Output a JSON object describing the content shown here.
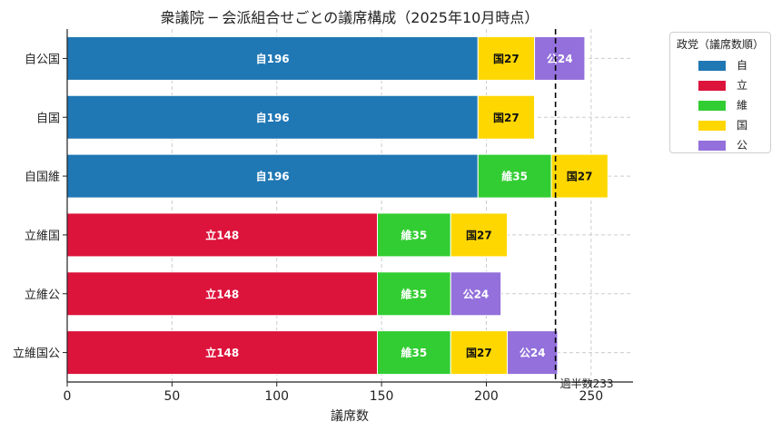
{
  "chart_data": {
    "type": "bar",
    "orientation": "horizontal",
    "stacked": true,
    "title": "衆議院 ─ 会派組合せごとの議席構成（2025年10月時点）",
    "xlabel": "議席数",
    "ylabel": "",
    "xlim": [
      0,
      270
    ],
    "xticks": [
      0,
      50,
      100,
      150,
      200,
      250
    ],
    "grid": true,
    "legend_title": "政党（議席数順）",
    "legend_position": "outside-right",
    "legend": [
      {
        "party": "自",
        "color": "#1f77b4"
      },
      {
        "party": "立",
        "color": "#dc143c"
      },
      {
        "party": "維",
        "color": "#32cd32"
      },
      {
        "party": "国",
        "color": "#ffd700"
      },
      {
        "party": "公",
        "color": "#9370db"
      }
    ],
    "categories": [
      "自公国",
      "自国",
      "自国維",
      "立維国",
      "立維公",
      "立維国公"
    ],
    "bars": [
      {
        "category": "自公国",
        "segments": [
          {
            "party": "自",
            "value": 196,
            "label": "自196"
          },
          {
            "party": "国",
            "value": 27,
            "label": "国27"
          },
          {
            "party": "公",
            "value": 24,
            "label": "公24"
          }
        ]
      },
      {
        "category": "自国",
        "segments": [
          {
            "party": "自",
            "value": 196,
            "label": "自196"
          },
          {
            "party": "国",
            "value": 27,
            "label": "国27"
          }
        ]
      },
      {
        "category": "自国維",
        "segments": [
          {
            "party": "自",
            "value": 196,
            "label": "自196"
          },
          {
            "party": "維",
            "value": 35,
            "label": "維35"
          },
          {
            "party": "国",
            "value": 27,
            "label": "国27"
          }
        ]
      },
      {
        "category": "立維国",
        "segments": [
          {
            "party": "立",
            "value": 148,
            "label": "立148"
          },
          {
            "party": "維",
            "value": 35,
            "label": "維35"
          },
          {
            "party": "国",
            "value": 27,
            "label": "国27"
          }
        ]
      },
      {
        "category": "立維公",
        "segments": [
          {
            "party": "立",
            "value": 148,
            "label": "立148"
          },
          {
            "party": "維",
            "value": 35,
            "label": "維35"
          },
          {
            "party": "公",
            "value": 24,
            "label": "公24"
          }
        ]
      },
      {
        "category": "立維国公",
        "segments": [
          {
            "party": "立",
            "value": 148,
            "label": "立148"
          },
          {
            "party": "維",
            "value": 35,
            "label": "維35"
          },
          {
            "party": "国",
            "value": 27,
            "label": "国27"
          },
          {
            "party": "公",
            "value": 24,
            "label": "公24"
          }
        ]
      }
    ],
    "reference_line": {
      "value": 233,
      "label": "過半数233",
      "style": "dashed",
      "color": "#000000"
    }
  }
}
